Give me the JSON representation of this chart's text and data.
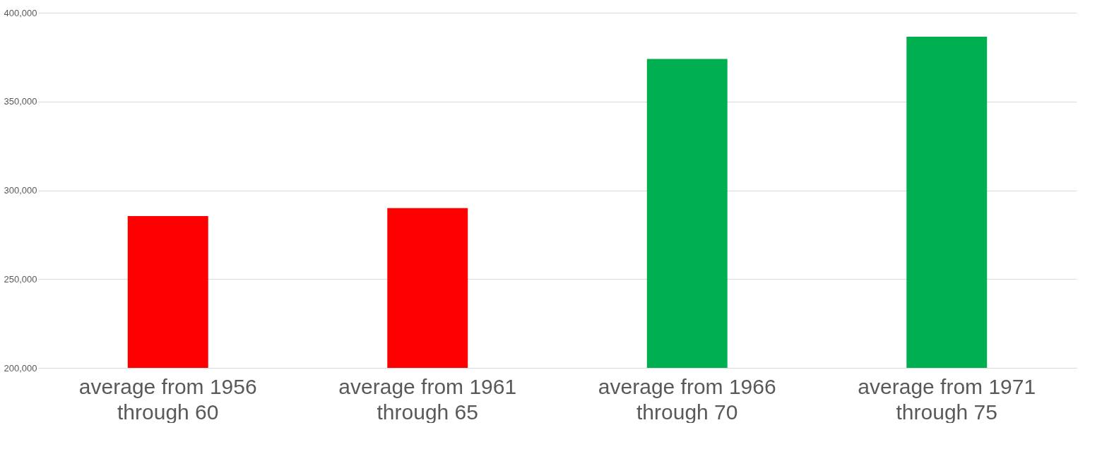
{
  "chart_data": {
    "type": "bar",
    "categories": [
      "average from 1956\nthrough 60",
      "average from 1961\nthrough 65",
      "average from 1966\nthrough 70",
      "average from 1971\nthrough 75"
    ],
    "values": [
      285500,
      290000,
      374000,
      386500
    ],
    "colors": [
      "#ff0000",
      "#ff0000",
      "#00b050",
      "#00b050"
    ],
    "ylim": [
      200000,
      400000
    ],
    "yticks": [
      {
        "value": 200000,
        "label": "200,000"
      },
      {
        "value": 250000,
        "label": "250,000"
      },
      {
        "value": 300000,
        "label": "300,000"
      },
      {
        "value": 350000,
        "label": "350,000"
      },
      {
        "value": 400000,
        "label": "400,000"
      }
    ],
    "grid": "y"
  }
}
